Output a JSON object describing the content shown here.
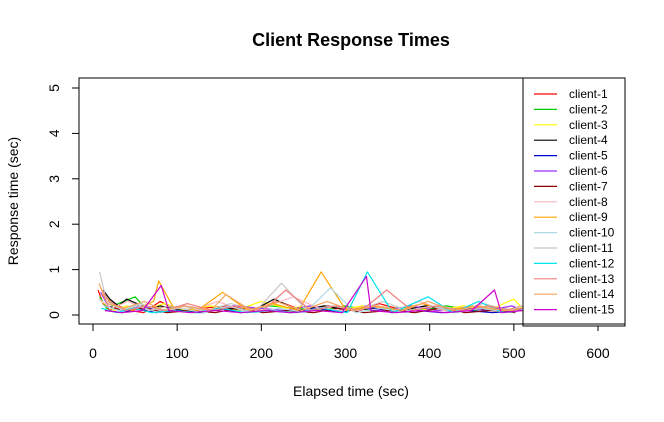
{
  "chart_data": {
    "type": "line",
    "title": "Client Response Times",
    "xlabel": "Elapsed time (sec)",
    "ylabel": "Response time (sec)",
    "xlim": [
      0,
      630
    ],
    "ylim": [
      0,
      5
    ],
    "xticks": [
      0,
      100,
      200,
      300,
      400,
      500,
      600
    ],
    "yticks": [
      0,
      1,
      2,
      3,
      4,
      5
    ],
    "grid": false,
    "legend_position": "right",
    "series": [
      {
        "name": "client-1",
        "color": "#ff0000",
        "points": [
          [
            6,
            0.55
          ],
          [
            12,
            0.25
          ],
          [
            20,
            0.1
          ],
          [
            30,
            0.2
          ],
          [
            45,
            0.1
          ],
          [
            60,
            0.05
          ],
          [
            80,
            0.3
          ],
          [
            100,
            0.1
          ],
          [
            130,
            0.15
          ],
          [
            160,
            0.2
          ],
          [
            190,
            0.1
          ],
          [
            220,
            0.3
          ],
          [
            250,
            0.1
          ],
          [
            280,
            0.2
          ],
          [
            310,
            0.1
          ],
          [
            340,
            0.25
          ],
          [
            370,
            0.1
          ],
          [
            400,
            0.2
          ],
          [
            430,
            0.1
          ],
          [
            460,
            0.15
          ],
          [
            490,
            0.1
          ],
          [
            510,
            0.2
          ]
        ]
      },
      {
        "name": "client-2",
        "color": "#00cd00",
        "points": [
          [
            8,
            0.4
          ],
          [
            16,
            0.15
          ],
          [
            30,
            0.25
          ],
          [
            50,
            0.4
          ],
          [
            65,
            0.1
          ],
          [
            90,
            0.2
          ],
          [
            120,
            0.05
          ],
          [
            150,
            0.15
          ],
          [
            180,
            0.1
          ],
          [
            210,
            0.2
          ],
          [
            240,
            0.15
          ],
          [
            270,
            0.1
          ],
          [
            300,
            0.2
          ],
          [
            330,
            0.1
          ],
          [
            360,
            0.15
          ],
          [
            390,
            0.1
          ],
          [
            420,
            0.2
          ],
          [
            450,
            0.1
          ],
          [
            480,
            0.15
          ],
          [
            510,
            0.1
          ]
        ]
      },
      {
        "name": "client-3",
        "color": "#ffff00",
        "points": [
          [
            10,
            0.3
          ],
          [
            25,
            0.1
          ],
          [
            40,
            0.2
          ],
          [
            60,
            0.1
          ],
          [
            85,
            0.25
          ],
          [
            110,
            0.1
          ],
          [
            140,
            0.2
          ],
          [
            170,
            0.1
          ],
          [
            200,
            0.3
          ],
          [
            230,
            0.15
          ],
          [
            260,
            0.2
          ],
          [
            290,
            0.1
          ],
          [
            320,
            0.2
          ],
          [
            350,
            0.1
          ],
          [
            380,
            0.15
          ],
          [
            410,
            0.1
          ],
          [
            440,
            0.2
          ],
          [
            470,
            0.1
          ],
          [
            500,
            0.35
          ],
          [
            510,
            0.15
          ]
        ]
      },
      {
        "name": "client-4",
        "color": "#000000",
        "points": [
          [
            12,
            0.55
          ],
          [
            20,
            0.35
          ],
          [
            30,
            0.2
          ],
          [
            40,
            0.35
          ],
          [
            52,
            0.25
          ],
          [
            60,
            0.1
          ],
          [
            80,
            0.2
          ],
          [
            105,
            0.1
          ],
          [
            130,
            0.05
          ],
          [
            160,
            0.15
          ],
          [
            190,
            0.1
          ],
          [
            215,
            0.35
          ],
          [
            245,
            0.1
          ],
          [
            275,
            0.2
          ],
          [
            305,
            0.1
          ],
          [
            335,
            0.15
          ],
          [
            365,
            0.1
          ],
          [
            395,
            0.2
          ],
          [
            425,
            0.1
          ],
          [
            455,
            0.15
          ],
          [
            485,
            0.1
          ],
          [
            510,
            0.1
          ]
        ]
      },
      {
        "name": "client-5",
        "color": "#0000cd",
        "points": [
          [
            15,
            0.1
          ],
          [
            35,
            0.05
          ],
          [
            55,
            0.15
          ],
          [
            75,
            0.05
          ],
          [
            100,
            0.1
          ],
          [
            125,
            0.05
          ],
          [
            150,
            0.15
          ],
          [
            175,
            0.05
          ],
          [
            205,
            0.1
          ],
          [
            235,
            0.05
          ],
          [
            265,
            0.15
          ],
          [
            295,
            0.05
          ],
          [
            325,
            0.2
          ],
          [
            355,
            0.05
          ],
          [
            385,
            0.1
          ],
          [
            415,
            0.05
          ],
          [
            445,
            0.1
          ],
          [
            475,
            0.05
          ],
          [
            505,
            0.1
          ]
        ]
      },
      {
        "name": "client-6",
        "color": "#9b30ff",
        "points": [
          [
            9,
            0.5
          ],
          [
            18,
            0.2
          ],
          [
            33,
            0.1
          ],
          [
            58,
            0.2
          ],
          [
            82,
            0.1
          ],
          [
            108,
            0.2
          ],
          [
            138,
            0.1
          ],
          [
            168,
            0.2
          ],
          [
            198,
            0.15
          ],
          [
            228,
            0.1
          ],
          [
            258,
            0.2
          ],
          [
            288,
            0.1
          ],
          [
            318,
            0.15
          ],
          [
            348,
            0.1
          ],
          [
            378,
            0.2
          ],
          [
            408,
            0.1
          ],
          [
            438,
            0.15
          ],
          [
            468,
            0.1
          ],
          [
            498,
            0.2
          ],
          [
            510,
            0.1
          ]
        ]
      },
      {
        "name": "client-7",
        "color": "#8b0000",
        "points": [
          [
            14,
            0.2
          ],
          [
            38,
            0.1
          ],
          [
            62,
            0.15
          ],
          [
            88,
            0.05
          ],
          [
            115,
            0.1
          ],
          [
            145,
            0.05
          ],
          [
            172,
            0.15
          ],
          [
            202,
            0.05
          ],
          [
            232,
            0.1
          ],
          [
            262,
            0.05
          ],
          [
            292,
            0.15
          ],
          [
            322,
            0.05
          ],
          [
            352,
            0.1
          ],
          [
            382,
            0.05
          ],
          [
            412,
            0.15
          ],
          [
            442,
            0.05
          ],
          [
            472,
            0.1
          ],
          [
            502,
            0.05
          ]
        ]
      },
      {
        "name": "client-8",
        "color": "#ffb6c1",
        "points": [
          [
            7,
            0.35
          ],
          [
            22,
            0.15
          ],
          [
            42,
            0.3
          ],
          [
            66,
            0.1
          ],
          [
            92,
            0.2
          ],
          [
            118,
            0.1
          ],
          [
            148,
            0.3
          ],
          [
            178,
            0.1
          ],
          [
            208,
            0.2
          ],
          [
            238,
            0.4
          ],
          [
            268,
            0.15
          ],
          [
            298,
            0.1
          ],
          [
            328,
            0.2
          ],
          [
            358,
            0.1
          ],
          [
            388,
            0.3
          ],
          [
            418,
            0.1
          ],
          [
            448,
            0.2
          ],
          [
            478,
            0.1
          ],
          [
            508,
            0.15
          ]
        ]
      },
      {
        "name": "client-9",
        "color": "#ffa500",
        "points": [
          [
            11,
            0.45
          ],
          [
            27,
            0.2
          ],
          [
            47,
            0.1
          ],
          [
            72,
            0.3
          ],
          [
            78,
            0.75
          ],
          [
            96,
            0.15
          ],
          [
            124,
            0.1
          ],
          [
            154,
            0.5
          ],
          [
            184,
            0.1
          ],
          [
            214,
            0.25
          ],
          [
            244,
            0.1
          ],
          [
            271,
            0.95
          ],
          [
            301,
            0.1
          ],
          [
            331,
            0.2
          ],
          [
            361,
            0.1
          ],
          [
            391,
            0.25
          ],
          [
            421,
            0.1
          ],
          [
            451,
            0.2
          ],
          [
            481,
            0.1
          ],
          [
            510,
            0.15
          ]
        ]
      },
      {
        "name": "client-10",
        "color": "#add8e6",
        "points": [
          [
            13,
            0.2
          ],
          [
            31,
            0.1
          ],
          [
            54,
            0.2
          ],
          [
            77,
            0.05
          ],
          [
            102,
            0.15
          ],
          [
            132,
            0.05
          ],
          [
            162,
            0.2
          ],
          [
            192,
            0.05
          ],
          [
            222,
            0.15
          ],
          [
            252,
            0.05
          ],
          [
            282,
            0.6
          ],
          [
            312,
            0.05
          ],
          [
            342,
            0.15
          ],
          [
            372,
            0.05
          ],
          [
            402,
            0.2
          ],
          [
            432,
            0.05
          ],
          [
            462,
            0.15
          ],
          [
            492,
            0.05
          ],
          [
            510,
            0.1
          ]
        ]
      },
      {
        "name": "client-11",
        "color": "#c8c8c8",
        "points": [
          [
            8,
            0.95
          ],
          [
            16,
            0.3
          ],
          [
            36,
            0.1
          ],
          [
            56,
            0.25
          ],
          [
            79,
            0.1
          ],
          [
            104,
            0.2
          ],
          [
            134,
            0.1
          ],
          [
            164,
            0.25
          ],
          [
            194,
            0.1
          ],
          [
            224,
            0.7
          ],
          [
            254,
            0.1
          ],
          [
            284,
            0.2
          ],
          [
            314,
            0.1
          ],
          [
            344,
            0.3
          ],
          [
            374,
            0.1
          ],
          [
            404,
            0.2
          ],
          [
            434,
            0.1
          ],
          [
            464,
            0.25
          ],
          [
            494,
            0.1
          ],
          [
            510,
            0.2
          ]
        ]
      },
      {
        "name": "client-12",
        "color": "#00e5ee",
        "points": [
          [
            10,
            0.15
          ],
          [
            28,
            0.05
          ],
          [
            48,
            0.15
          ],
          [
            70,
            0.05
          ],
          [
            95,
            0.1
          ],
          [
            122,
            0.05
          ],
          [
            152,
            0.15
          ],
          [
            182,
            0.05
          ],
          [
            212,
            0.1
          ],
          [
            242,
            0.05
          ],
          [
            272,
            0.15
          ],
          [
            302,
            0.05
          ],
          [
            326,
            0.95
          ],
          [
            356,
            0.05
          ],
          [
            398,
            0.4
          ],
          [
            428,
            0.05
          ],
          [
            458,
            0.3
          ],
          [
            488,
            0.05
          ],
          [
            510,
            0.1
          ]
        ]
      },
      {
        "name": "client-13",
        "color": "#f08080",
        "points": [
          [
            9,
            0.6
          ],
          [
            19,
            0.3
          ],
          [
            39,
            0.1
          ],
          [
            64,
            0.2
          ],
          [
            86,
            0.1
          ],
          [
            112,
            0.25
          ],
          [
            142,
            0.1
          ],
          [
            172,
            0.2
          ],
          [
            202,
            0.1
          ],
          [
            229,
            0.55
          ],
          [
            259,
            0.1
          ],
          [
            289,
            0.2
          ],
          [
            319,
            0.1
          ],
          [
            349,
            0.55
          ],
          [
            379,
            0.1
          ],
          [
            409,
            0.2
          ],
          [
            439,
            0.1
          ],
          [
            469,
            0.2
          ],
          [
            499,
            0.1
          ],
          [
            510,
            0.15
          ]
        ]
      },
      {
        "name": "client-14",
        "color": "#f4a460",
        "points": [
          [
            7,
            0.7
          ],
          [
            17,
            0.25
          ],
          [
            37,
            0.15
          ],
          [
            61,
            0.3
          ],
          [
            84,
            0.1
          ],
          [
            110,
            0.2
          ],
          [
            140,
            0.1
          ],
          [
            158,
            0.45
          ],
          [
            188,
            0.1
          ],
          [
            218,
            0.3
          ],
          [
            248,
            0.1
          ],
          [
            278,
            0.3
          ],
          [
            308,
            0.1
          ],
          [
            338,
            0.2
          ],
          [
            368,
            0.1
          ],
          [
            398,
            0.3
          ],
          [
            428,
            0.1
          ],
          [
            458,
            0.2
          ],
          [
            488,
            0.1
          ],
          [
            510,
            0.1
          ]
        ]
      },
      {
        "name": "client-15",
        "color": "#cd00cd",
        "points": [
          [
            14,
            0.1
          ],
          [
            34,
            0.05
          ],
          [
            59,
            0.1
          ],
          [
            81,
            0.65
          ],
          [
            90,
            0.1
          ],
          [
            116,
            0.05
          ],
          [
            146,
            0.1
          ],
          [
            176,
            0.05
          ],
          [
            206,
            0.1
          ],
          [
            236,
            0.05
          ],
          [
            266,
            0.1
          ],
          [
            296,
            0.05
          ],
          [
            325,
            0.85
          ],
          [
            330,
            0.1
          ],
          [
            360,
            0.05
          ],
          [
            390,
            0.1
          ],
          [
            420,
            0.05
          ],
          [
            450,
            0.1
          ],
          [
            477,
            0.55
          ],
          [
            485,
            0.05
          ],
          [
            510,
            0.1
          ]
        ]
      }
    ]
  }
}
